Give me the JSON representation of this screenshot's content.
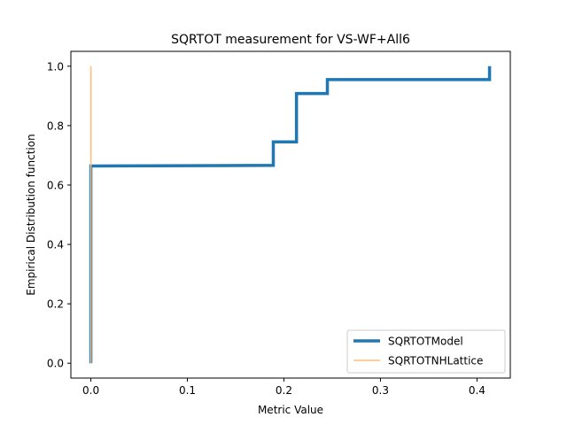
{
  "chart_data": {
    "type": "line",
    "title": "SQRTOT measurement for VS-WF+All6",
    "xlabel": "Metric Value",
    "ylabel": "Empirical Distribution function",
    "xlim": [
      -0.0207,
      0.4345
    ],
    "ylim": [
      -0.05,
      1.05
    ],
    "xticks": [
      0.0,
      0.1,
      0.2,
      0.3,
      0.4
    ],
    "xtick_labels": [
      "0.0",
      "0.1",
      "0.2",
      "0.3",
      "0.4"
    ],
    "yticks": [
      0.0,
      0.2,
      0.4,
      0.6,
      0.8,
      1.0
    ],
    "ytick_labels": [
      "0.0",
      "0.2",
      "0.4",
      "0.6",
      "0.8",
      "1.0"
    ],
    "grid": false,
    "legend_position": "lower-right",
    "series": [
      {
        "name": "SQRTOTModel",
        "color": "#1f77b4",
        "line_width": "thick",
        "x": [
          0.0,
          0.0,
          0.189,
          0.189,
          0.213,
          0.213,
          0.245,
          0.245,
          0.413,
          0.413
        ],
        "y": [
          0.0,
          0.664,
          0.666,
          0.745,
          0.745,
          0.908,
          0.908,
          0.955,
          0.955,
          1.0
        ]
      },
      {
        "name": "SQRTOTNHLattice",
        "color": "#ffbb78",
        "line_width": "thin",
        "x": [
          0.0,
          0.0
        ],
        "y": [
          0.0,
          1.0
        ]
      }
    ]
  }
}
